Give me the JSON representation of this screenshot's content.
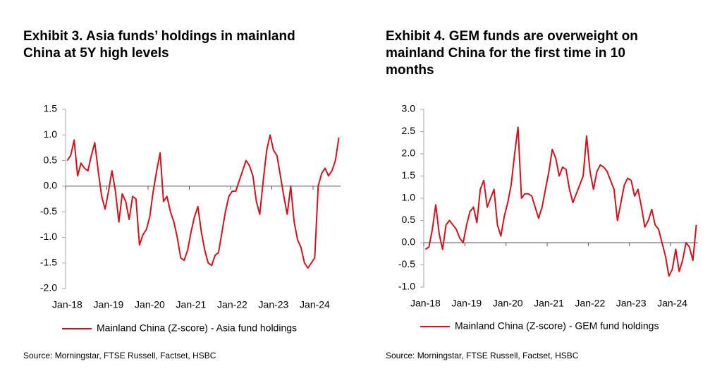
{
  "chart_data": [
    {
      "type": "line",
      "title": [
        "Exhibit 3. Asia funds’ holdings in mainland",
        "China at 5Y high levels"
      ],
      "categories": [
        "Jan-18",
        null,
        null,
        null,
        null,
        null,
        null,
        null,
        null,
        null,
        null,
        null,
        "Jan-19",
        null,
        null,
        null,
        null,
        null,
        null,
        null,
        null,
        null,
        null,
        null,
        "Jan-20",
        null,
        null,
        null,
        null,
        null,
        null,
        null,
        null,
        null,
        null,
        null,
        "Jan-21",
        null,
        null,
        null,
        null,
        null,
        null,
        null,
        null,
        null,
        null,
        null,
        "Jan-22",
        null,
        null,
        null,
        null,
        null,
        null,
        null,
        null,
        null,
        null,
        null,
        "Jan-23",
        null,
        null,
        null,
        null,
        null,
        null,
        null,
        null,
        null,
        null,
        null,
        "Jan-24",
        null,
        null,
        null,
        null,
        null,
        null,
        null
      ],
      "series": [
        {
          "name": "Mainland China (Z-score) - Asia fund holdings",
          "color": "#d0121f",
          "values": [
            0.5,
            0.6,
            0.9,
            0.2,
            0.45,
            0.35,
            0.3,
            0.6,
            0.85,
            0.3,
            -0.2,
            -0.45,
            -0.1,
            0.3,
            -0.1,
            -0.7,
            -0.15,
            -0.3,
            -0.65,
            -0.2,
            -0.25,
            -1.15,
            -0.95,
            -0.85,
            -0.6,
            -0.1,
            0.3,
            0.65,
            -0.3,
            -0.2,
            -0.5,
            -0.7,
            -1.0,
            -1.4,
            -1.45,
            -1.25,
            -0.9,
            -0.6,
            -0.4,
            -0.9,
            -1.25,
            -1.5,
            -1.55,
            -1.35,
            -1.3,
            -0.9,
            -0.5,
            -0.2,
            -0.1,
            -0.1,
            0.1,
            0.3,
            0.5,
            0.4,
            0.2,
            -0.3,
            -0.55,
            0.1,
            0.7,
            1.0,
            0.7,
            0.6,
            0.2,
            -0.2,
            -0.55,
            0.0,
            -0.7,
            -1.05,
            -1.2,
            -1.5,
            -1.6,
            -1.5,
            -1.4,
            0.0,
            0.25,
            0.35,
            0.2,
            0.3,
            0.5,
            0.95
          ]
        }
      ],
      "ylim": [
        -2.0,
        1.5
      ],
      "yticks": [
        {
          "value": -2,
          "label": "-2.0"
        },
        -1.5,
        {
          "value": -1,
          "label": "-1.0"
        },
        -0.5,
        {
          "value": 0,
          "label": "0.0"
        },
        0.5,
        {
          "value": 1,
          "label": "1.0"
        },
        1.5
      ],
      "grid": false,
      "source": "Source: Morningstar, FTSE Russell, Factset, HSBC"
    },
    {
      "type": "line",
      "title": [
        "Exhibit 4. GEM funds are overweight on",
        "mainland China for the first time in 10",
        "months"
      ],
      "categories": [
        "Jan-18",
        null,
        null,
        null,
        null,
        null,
        null,
        null,
        null,
        null,
        null,
        null,
        "Jan-19",
        null,
        null,
        null,
        null,
        null,
        null,
        null,
        null,
        null,
        null,
        null,
        "Jan-20",
        null,
        null,
        null,
        null,
        null,
        null,
        null,
        null,
        null,
        null,
        null,
        "Jan-21",
        null,
        null,
        null,
        null,
        null,
        null,
        null,
        null,
        null,
        null,
        null,
        "Jan-22",
        null,
        null,
        null,
        null,
        null,
        null,
        null,
        null,
        null,
        null,
        null,
        "Jan-23",
        null,
        null,
        null,
        null,
        null,
        null,
        null,
        null,
        null,
        null,
        null,
        "Jan-24",
        null,
        null,
        null,
        null,
        null,
        null,
        null
      ],
      "series": [
        {
          "name": "Mainland China (Z-score) - GEM fund holdings",
          "color": "#d0121f",
          "values": [
            -0.15,
            -0.1,
            0.3,
            0.85,
            0.2,
            -0.15,
            0.4,
            0.5,
            0.4,
            0.3,
            0.1,
            0.0,
            0.4,
            0.7,
            0.8,
            0.45,
            1.2,
            1.4,
            0.8,
            1.0,
            1.2,
            0.4,
            0.15,
            0.6,
            0.9,
            1.3,
            2.0,
            2.6,
            1.0,
            1.1,
            1.1,
            1.05,
            0.8,
            0.55,
            0.8,
            1.2,
            1.6,
            2.1,
            1.9,
            1.5,
            1.7,
            1.65,
            1.2,
            0.9,
            1.1,
            1.3,
            1.5,
            2.4,
            1.6,
            1.2,
            1.6,
            1.75,
            1.7,
            1.6,
            1.4,
            1.2,
            0.5,
            0.9,
            1.3,
            1.45,
            1.4,
            1.05,
            1.2,
            0.8,
            0.35,
            0.5,
            0.75,
            0.4,
            0.3,
            0.0,
            -0.3,
            -0.75,
            -0.6,
            -0.15,
            -0.65,
            -0.4,
            0.0,
            -0.1,
            -0.4,
            0.4
          ]
        }
      ],
      "ylim": [
        -1.0,
        3.0
      ],
      "yticks": [
        {
          "value": -1,
          "label": "-1.0"
        },
        -0.5,
        {
          "value": 0,
          "label": "0.0"
        },
        0.5,
        {
          "value": 1,
          "label": "1.0"
        },
        1.5,
        {
          "value": 2,
          "label": "2.0"
        },
        2.5,
        {
          "value": 3,
          "label": "3.0"
        }
      ],
      "grid": false,
      "source": "Source: Morningstar, FTSE Russell, Factset, HSBC"
    }
  ]
}
